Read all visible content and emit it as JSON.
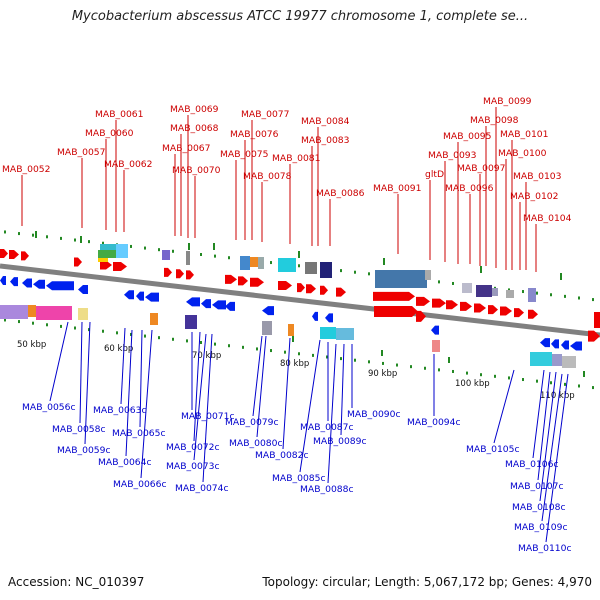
{
  "title": "Mycobacterium abscessus ATCC 19977 chromosome 1, complete se...",
  "footer": {
    "accession": "Accession: NC_010397",
    "summary": "Topology: circular; Length: 5,067,172 bp; Genes: 4,970"
  },
  "colors": {
    "forward_label": "#cc0000",
    "reverse_label": "#0000cc",
    "forward_gene": "#ee0000",
    "reverse_gene": "#0022ee",
    "backbone": "#808080",
    "tick_mark": "#228822"
  },
  "scale_ticks": [
    "50 kbp",
    "60 kbp",
    "70 kbp",
    "80 kbp",
    "90 kbp",
    "100 kbp",
    "110 kbp"
  ],
  "forward_genes": [
    "MAB_0052",
    "MAB_0057",
    "MAB_0060",
    "MAB_0061",
    "MAB_0062",
    "MAB_0067",
    "MAB_0068",
    "MAB_0069",
    "MAB_0070",
    "MAB_0075",
    "MAB_0076",
    "MAB_0077",
    "MAB_0078",
    "MAB_0081",
    "MAB_0083",
    "MAB_0084",
    "MAB_0086",
    "MAB_0091",
    "gltD",
    "MAB_0093",
    "MAB_0095",
    "MAB_0096",
    "MAB_0097",
    "MAB_0098",
    "MAB_0099",
    "MAB_0100",
    "MAB_0101",
    "MAB_0102",
    "MAB_0103",
    "MAB_0104"
  ],
  "reverse_genes": [
    "MAB_0056c",
    "MAB_0058c",
    "MAB_0059c",
    "MAB_0063c",
    "MAB_0064c",
    "MAB_0065c",
    "MAB_0066c",
    "MAB_0071c",
    "MAB_0072c",
    "MAB_0073c",
    "MAB_0074c",
    "MAB_0079c",
    "MAB_0080c",
    "MAB_0082c",
    "MAB_0085c",
    "MAB_0087c",
    "MAB_0088c",
    "MAB_0089c",
    "MAB_0090c",
    "MAB_0094c",
    "MAB_0105c",
    "MAB_0106c",
    "MAB_0107c",
    "MAB_0108c",
    "MAB_0109c",
    "MAB_0110c"
  ]
}
